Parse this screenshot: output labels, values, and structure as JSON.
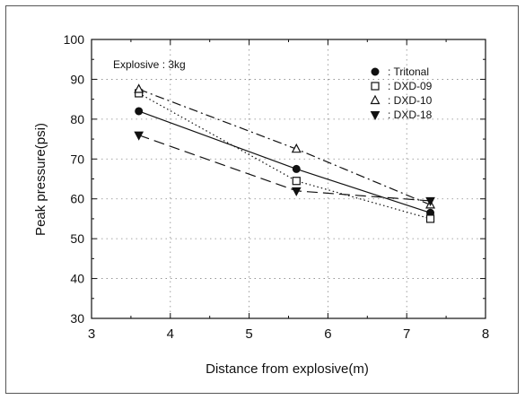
{
  "chart_data": {
    "type": "line",
    "annotation": "Explosive : 3kg",
    "xlabel": "Distance from explosive(m)",
    "ylabel": "Peak pressure(psi)",
    "xlim": [
      3,
      8
    ],
    "ylim": [
      30,
      100
    ],
    "x_ticks": [
      "3",
      "4",
      "5",
      "6",
      "7",
      "8"
    ],
    "y_ticks": [
      "30",
      "40",
      "50",
      "60",
      "70",
      "80",
      "90",
      "100"
    ],
    "grid": true,
    "legend_position": "top-right",
    "x": [
      3.6,
      5.6,
      7.3
    ],
    "series": [
      {
        "name": ": Tritonal",
        "marker": "circle-filled",
        "dash": "solid",
        "values": [
          82,
          67.5,
          56.5
        ]
      },
      {
        "name": ": DXD-09",
        "marker": "square-open",
        "dash": "dotted",
        "values": [
          86.5,
          64.5,
          55
        ]
      },
      {
        "name": ": DXD-10",
        "marker": "triangle-up-open",
        "dash": "dashdot",
        "values": [
          87.5,
          72.5,
          58.5
        ]
      },
      {
        "name": ": DXD-18",
        "marker": "triangle-down-filled",
        "dash": "dashed",
        "values": [
          76,
          62,
          59.5
        ]
      }
    ]
  }
}
